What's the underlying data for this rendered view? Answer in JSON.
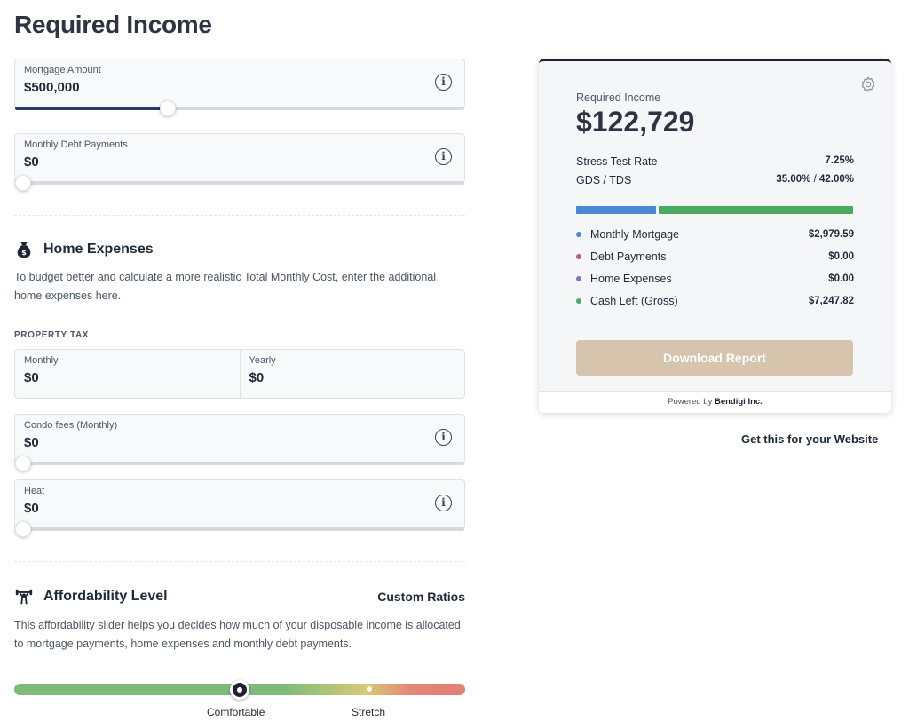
{
  "page_title": "Required Income",
  "mortgage": {
    "label": "Mortgage Amount",
    "value": "$500,000",
    "slider_fraction": 0.34
  },
  "debt": {
    "label": "Monthly Debt Payments",
    "value": "$0",
    "slider_fraction": 0.0
  },
  "home_expenses": {
    "title": "Home Expenses",
    "icon": "money-bag-icon",
    "description": "To budget better and calculate a more realistic Total Monthly Cost, enter the additional home expenses here.",
    "property_tax_heading": "PROPERTY TAX",
    "property_tax_monthly": {
      "label": "Monthly",
      "value": "$0"
    },
    "property_tax_yearly": {
      "label": "Yearly",
      "value": "$0"
    },
    "condo": {
      "label": "Condo fees (Monthly)",
      "value": "$0",
      "slider_fraction": 0.0
    },
    "heat": {
      "label": "Heat",
      "value": "$0",
      "slider_fraction": 0.0
    }
  },
  "affordability": {
    "title": "Affordability Level",
    "icon": "weightlifter-icon",
    "custom_ratios_label": "Custom Ratios",
    "description": "This affordability slider helps you decides how much of your disposable income is allocated to mortgage payments, home expenses and monthly debt payments.",
    "label_comfortable": "Comfortable",
    "label_stretch": "Stretch",
    "selected": "Comfortable"
  },
  "summary": {
    "caption": "Required Income",
    "amount": "$122,729",
    "stress_label": "Stress Test Rate",
    "stress_value": "7.25%",
    "gds_label": "GDS / TDS",
    "gds_value": "35.00%",
    "gds_separator": "/",
    "tds_value": "42.00%",
    "bar": [
      {
        "name": "Monthly Mortgage",
        "color": "#4a86d3",
        "fraction": 0.29
      },
      {
        "name": "Cash Left (Gross)",
        "color": "#4aac5f",
        "fraction": 0.71
      }
    ],
    "legend": [
      {
        "label": "Monthly Mortgage",
        "value": "$2,979.59",
        "color": "#4a86d3"
      },
      {
        "label": "Debt Payments",
        "value": "$0.00",
        "color": "#c4577a"
      },
      {
        "label": "Home Expenses",
        "value": "$0.00",
        "color": "#7a72c8"
      },
      {
        "label": "Cash Left (Gross)",
        "value": "$7,247.82",
        "color": "#4aac5f"
      }
    ],
    "download_label": "Download Report",
    "powered_prefix": "Powered by",
    "powered_brand": "Bendigi Inc."
  },
  "get_this_link": "Get this for your Website"
}
